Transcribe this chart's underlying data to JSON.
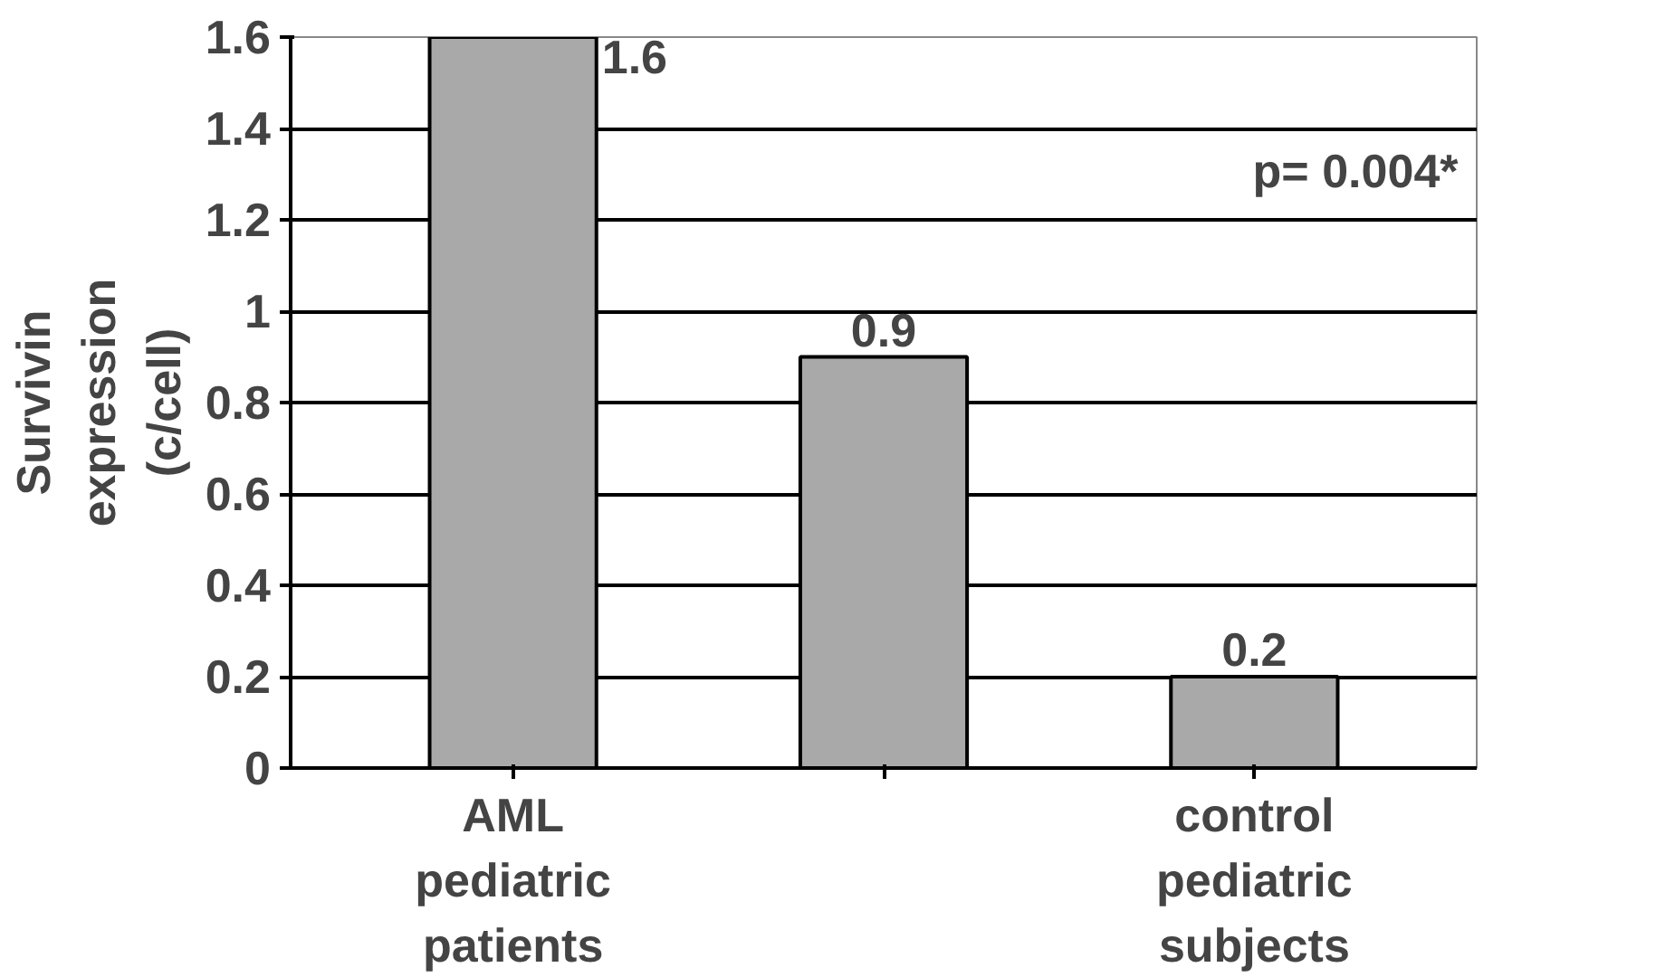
{
  "chart_data": {
    "type": "bar",
    "ylabel": "Survivin expression (c/cell)",
    "categories": [
      "AML pediatric patients",
      null,
      "control pediatric subjects"
    ],
    "values": [
      1.6,
      0.9,
      0.2
    ],
    "color": "#a9a9a9",
    "data_labels": true,
    "ylim": [
      0,
      1.6
    ],
    "yticks": [
      0,
      0.2,
      0.4,
      0.6,
      0.8,
      1,
      1.2,
      1.4,
      1.6
    ],
    "grid": "y",
    "annotations": [
      "p= 0.004*"
    ]
  }
}
